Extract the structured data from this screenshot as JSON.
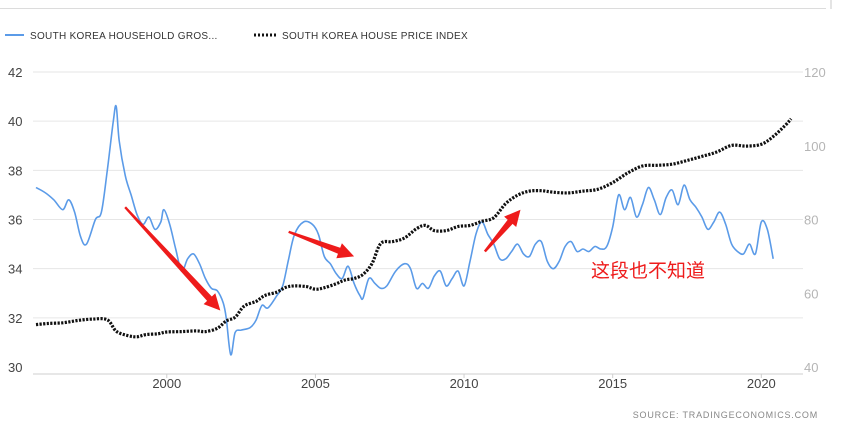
{
  "chart_data": {
    "type": "line",
    "x_ticks": [
      2000,
      2005,
      2010,
      2015,
      2020
    ],
    "xlim": [
      1995.5,
      2021.2
    ],
    "y_left": {
      "ticks": [
        30,
        32,
        34,
        36,
        38,
        40,
        42
      ],
      "lim": [
        30,
        42
      ]
    },
    "y_right": {
      "ticks": [
        40,
        60,
        80,
        100,
        120
      ],
      "lim": [
        40,
        120
      ]
    },
    "grid": "horizontal",
    "legend_position": "top-left",
    "source": "SOURCE:  TRADINGECONOMICS.COM",
    "series": [
      {
        "name": "SOUTH  KOREA  HOUSEHOLD  GROS...",
        "axis": "left",
        "color": "#5b9be8",
        "style": "solid",
        "points": [
          [
            1995.6,
            37.3
          ],
          [
            1995.9,
            37.1
          ],
          [
            1996.2,
            36.8
          ],
          [
            1996.5,
            36.4
          ],
          [
            1996.7,
            36.8
          ],
          [
            1996.9,
            36.3
          ],
          [
            1997.1,
            35.3
          ],
          [
            1997.3,
            35.0
          ],
          [
            1997.6,
            36.0
          ],
          [
            1997.8,
            36.3
          ],
          [
            1998.0,
            38.0
          ],
          [
            1998.2,
            40.0
          ],
          [
            1998.3,
            40.6
          ],
          [
            1998.4,
            39.2
          ],
          [
            1998.6,
            37.8
          ],
          [
            1998.8,
            37.0
          ],
          [
            1999.0,
            36.2
          ],
          [
            1999.2,
            35.8
          ],
          [
            1999.4,
            36.1
          ],
          [
            1999.6,
            35.6
          ],
          [
            1999.8,
            35.9
          ],
          [
            1999.9,
            36.4
          ],
          [
            2000.1,
            35.8
          ],
          [
            2000.3,
            34.8
          ],
          [
            2000.5,
            33.9
          ],
          [
            2000.7,
            34.4
          ],
          [
            2000.9,
            34.6
          ],
          [
            2001.1,
            34.2
          ],
          [
            2001.3,
            33.6
          ],
          [
            2001.5,
            33.2
          ],
          [
            2001.7,
            33.1
          ],
          [
            2001.9,
            32.6
          ],
          [
            2002.0,
            32.0
          ],
          [
            2002.15,
            30.5
          ],
          [
            2002.3,
            31.4
          ],
          [
            2002.5,
            31.5
          ],
          [
            2002.8,
            31.6
          ],
          [
            2003.0,
            31.9
          ],
          [
            2003.2,
            32.5
          ],
          [
            2003.4,
            32.4
          ],
          [
            2003.7,
            32.9
          ],
          [
            2003.9,
            33.3
          ],
          [
            2004.1,
            34.4
          ],
          [
            2004.3,
            35.4
          ],
          [
            2004.6,
            35.9
          ],
          [
            2004.9,
            35.8
          ],
          [
            2005.1,
            35.4
          ],
          [
            2005.3,
            34.5
          ],
          [
            2005.5,
            34.2
          ],
          [
            2005.7,
            33.8
          ],
          [
            2005.9,
            33.6
          ],
          [
            2006.1,
            34.1
          ],
          [
            2006.3,
            33.4
          ],
          [
            2006.5,
            32.9
          ],
          [
            2006.6,
            32.8
          ],
          [
            2006.8,
            33.6
          ],
          [
            2007.0,
            33.4
          ],
          [
            2007.2,
            33.2
          ],
          [
            2007.4,
            33.3
          ],
          [
            2007.7,
            33.9
          ],
          [
            2008.0,
            34.2
          ],
          [
            2008.2,
            34.0
          ],
          [
            2008.4,
            33.2
          ],
          [
            2008.6,
            33.4
          ],
          [
            2008.8,
            33.2
          ],
          [
            2009.0,
            33.7
          ],
          [
            2009.2,
            33.9
          ],
          [
            2009.4,
            33.3
          ],
          [
            2009.6,
            33.6
          ],
          [
            2009.8,
            33.9
          ],
          [
            2010.0,
            33.3
          ],
          [
            2010.2,
            34.3
          ],
          [
            2010.4,
            35.4
          ],
          [
            2010.6,
            35.9
          ],
          [
            2010.8,
            35.4
          ],
          [
            2011.0,
            35.0
          ],
          [
            2011.2,
            34.4
          ],
          [
            2011.4,
            34.4
          ],
          [
            2011.6,
            34.7
          ],
          [
            2011.8,
            35.0
          ],
          [
            2012.0,
            34.6
          ],
          [
            2012.2,
            34.5
          ],
          [
            2012.4,
            35.0
          ],
          [
            2012.6,
            35.1
          ],
          [
            2012.8,
            34.3
          ],
          [
            2013.0,
            34.0
          ],
          [
            2013.2,
            34.3
          ],
          [
            2013.4,
            34.9
          ],
          [
            2013.6,
            35.1
          ],
          [
            2013.8,
            34.7
          ],
          [
            2014.0,
            34.8
          ],
          [
            2014.2,
            34.7
          ],
          [
            2014.4,
            34.9
          ],
          [
            2014.6,
            34.8
          ],
          [
            2014.8,
            34.9
          ],
          [
            2015.0,
            35.7
          ],
          [
            2015.2,
            37.0
          ],
          [
            2015.4,
            36.4
          ],
          [
            2015.6,
            36.9
          ],
          [
            2015.8,
            36.1
          ],
          [
            2016.0,
            36.6
          ],
          [
            2016.2,
            37.3
          ],
          [
            2016.4,
            36.8
          ],
          [
            2016.6,
            36.2
          ],
          [
            2016.8,
            36.9
          ],
          [
            2017.0,
            37.2
          ],
          [
            2017.2,
            36.6
          ],
          [
            2017.4,
            37.4
          ],
          [
            2017.6,
            36.8
          ],
          [
            2017.8,
            36.5
          ],
          [
            2018.0,
            36.1
          ],
          [
            2018.2,
            35.6
          ],
          [
            2018.4,
            35.9
          ],
          [
            2018.6,
            36.3
          ],
          [
            2018.8,
            35.8
          ],
          [
            2019.0,
            35.0
          ],
          [
            2019.2,
            34.7
          ],
          [
            2019.4,
            34.6
          ],
          [
            2019.6,
            35.0
          ],
          [
            2019.8,
            34.6
          ],
          [
            2020.0,
            35.9
          ],
          [
            2020.2,
            35.6
          ],
          [
            2020.4,
            34.4
          ]
        ]
      },
      {
        "name": "SOUTH KOREA HOUSE PRICE INDEX",
        "axis": "right",
        "color": "#111111",
        "style": "dotted",
        "points": [
          [
            1995.6,
            51.5
          ],
          [
            1996.0,
            51.8
          ],
          [
            1996.5,
            52.0
          ],
          [
            1997.0,
            52.6
          ],
          [
            1997.5,
            53.0
          ],
          [
            1998.0,
            52.8
          ],
          [
            1998.3,
            49.7
          ],
          [
            1998.7,
            48.5
          ],
          [
            1999.0,
            48.2
          ],
          [
            1999.3,
            48.8
          ],
          [
            1999.7,
            49.0
          ],
          [
            2000.0,
            49.5
          ],
          [
            2000.5,
            49.6
          ],
          [
            2001.0,
            49.8
          ],
          [
            2001.3,
            49.6
          ],
          [
            2001.7,
            50.5
          ],
          [
            2002.0,
            52.5
          ],
          [
            2002.3,
            53.5
          ],
          [
            2002.6,
            56.5
          ],
          [
            2003.0,
            57.8
          ],
          [
            2003.3,
            59.4
          ],
          [
            2003.7,
            60.3
          ],
          [
            2004.0,
            61.6
          ],
          [
            2004.3,
            62.0
          ],
          [
            2004.7,
            61.8
          ],
          [
            2005.0,
            61.1
          ],
          [
            2005.3,
            61.5
          ],
          [
            2005.7,
            62.6
          ],
          [
            2006.0,
            63.6
          ],
          [
            2006.3,
            64.0
          ],
          [
            2006.6,
            65.1
          ],
          [
            2006.9,
            68.0
          ],
          [
            2007.2,
            73.5
          ],
          [
            2007.6,
            74.0
          ],
          [
            2008.0,
            75.0
          ],
          [
            2008.4,
            77.5
          ],
          [
            2008.7,
            78.4
          ],
          [
            2009.0,
            77.0
          ],
          [
            2009.4,
            77.0
          ],
          [
            2009.8,
            78.1
          ],
          [
            2010.2,
            78.4
          ],
          [
            2010.6,
            79.5
          ],
          [
            2011.0,
            80.5
          ],
          [
            2011.4,
            84.3
          ],
          [
            2011.8,
            86.6
          ],
          [
            2012.2,
            87.7
          ],
          [
            2012.6,
            87.8
          ],
          [
            2013.0,
            87.4
          ],
          [
            2013.5,
            87.2
          ],
          [
            2014.0,
            87.7
          ],
          [
            2014.5,
            88.2
          ],
          [
            2015.0,
            90.0
          ],
          [
            2015.5,
            92.6
          ],
          [
            2016.0,
            94.5
          ],
          [
            2016.5,
            94.7
          ],
          [
            2017.0,
            95.0
          ],
          [
            2017.5,
            96.0
          ],
          [
            2018.0,
            97.1
          ],
          [
            2018.5,
            98.3
          ],
          [
            2019.0,
            100.1
          ],
          [
            2019.5,
            99.9
          ],
          [
            2020.0,
            100.4
          ],
          [
            2020.4,
            102.5
          ],
          [
            2020.8,
            105.5
          ],
          [
            2021.0,
            107.3
          ]
        ]
      }
    ]
  },
  "annotation": {
    "text": "这段也不知道",
    "color": "#ee1b1b"
  },
  "arrows": [
    {
      "from": [
        1998.6,
        36.5
      ],
      "to": [
        2001.8,
        32.3
      ]
    },
    {
      "from": [
        2004.1,
        35.5
      ],
      "to": [
        2006.3,
        34.5
      ]
    },
    {
      "from": [
        2010.7,
        34.7
      ],
      "to": [
        2011.9,
        36.4
      ]
    }
  ]
}
